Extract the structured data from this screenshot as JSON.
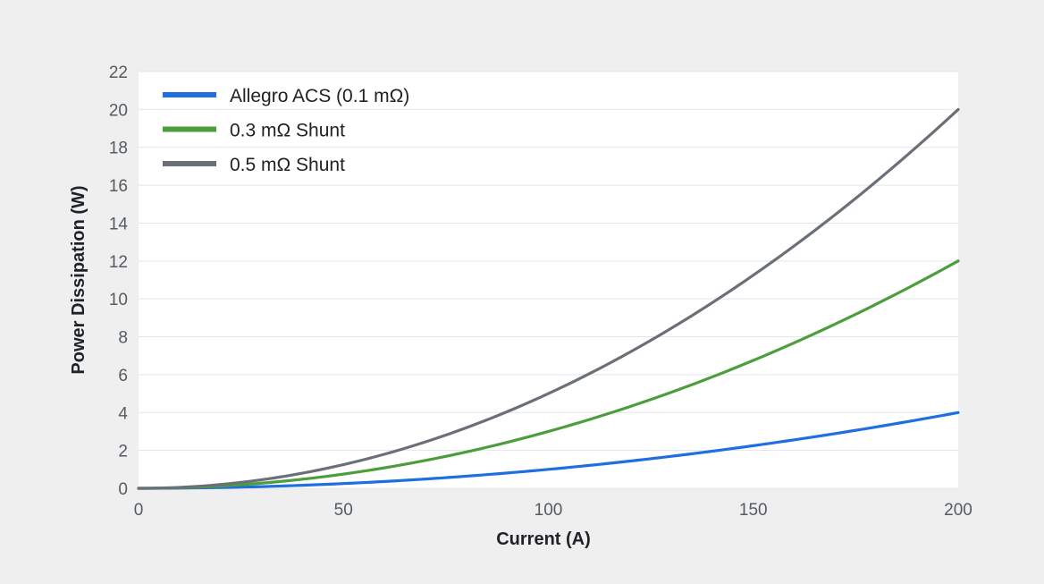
{
  "chart_data": {
    "type": "line",
    "title": "",
    "xlabel": "Current (A)",
    "ylabel": "Power Dissipation (W)",
    "xlim": [
      0,
      200
    ],
    "ylim": [
      0,
      22
    ],
    "xticks": [
      0,
      50,
      100,
      150,
      200
    ],
    "yticks": [
      0,
      2,
      4,
      6,
      8,
      10,
      12,
      14,
      16,
      18,
      20,
      22
    ],
    "grid": true,
    "legend_position": "top-left",
    "series": [
      {
        "name": "Allegro ACS (0.1 mΩ)",
        "color": "#1f6fe0",
        "x": [
          0,
          25,
          50,
          75,
          100,
          125,
          150,
          175,
          200
        ],
        "y": [
          0,
          0.06,
          0.25,
          0.56,
          1.0,
          1.56,
          2.25,
          3.06,
          4.0
        ]
      },
      {
        "name": "0.3 mΩ Shunt",
        "color": "#4c9e3c",
        "x": [
          0,
          25,
          50,
          75,
          100,
          125,
          150,
          175,
          200
        ],
        "y": [
          0,
          0.19,
          0.75,
          1.69,
          3.0,
          4.69,
          6.75,
          9.19,
          12.0
        ]
      },
      {
        "name": "0.5 mΩ Shunt",
        "color": "#6b7078",
        "x": [
          0,
          25,
          50,
          75,
          100,
          125,
          150,
          175,
          200
        ],
        "y": [
          0,
          0.31,
          1.25,
          2.81,
          5.0,
          7.81,
          11.25,
          15.31,
          20.0
        ]
      }
    ]
  }
}
